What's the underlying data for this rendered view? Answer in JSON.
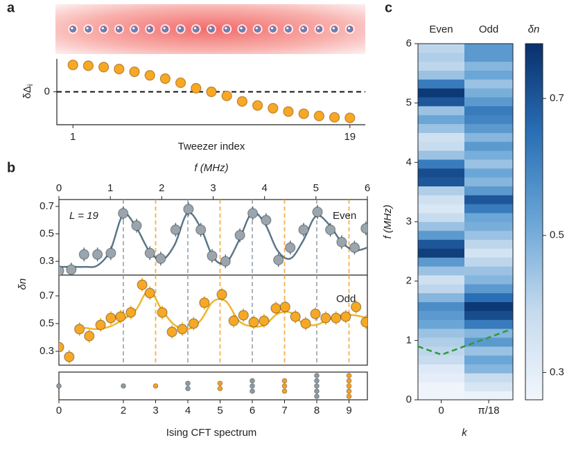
{
  "chart_data": [
    {
      "type": "scatter",
      "panel": "a",
      "xlabel": "Tweezer index",
      "ylabel": "δΔ",
      "ylabel_subscript": "i",
      "x": [
        1,
        2,
        3,
        4,
        5,
        6,
        7,
        8,
        9,
        10,
        11,
        12,
        13,
        14,
        15,
        16,
        17,
        18,
        19
      ],
      "values": [
        0.98,
        0.95,
        0.9,
        0.83,
        0.73,
        0.6,
        0.48,
        0.33,
        0.13,
        0,
        -0.15,
        -0.35,
        -0.5,
        -0.6,
        -0.72,
        -0.8,
        -0.88,
        -0.93,
        -0.95
      ],
      "color": "#f7a824",
      "xlim": [
        0,
        20
      ],
      "xticks": [
        1,
        19
      ],
      "ylim": [
        -1.2,
        1.2
      ],
      "yticks": [
        0
      ],
      "reference_line": 0
    },
    {
      "type": "line",
      "panel": "b",
      "xlabel": "f (MHz)",
      "ylabel": "δn",
      "annotation": "L = 19",
      "xlim": [
        0,
        6
      ],
      "xticks": [
        0,
        1,
        2,
        3,
        4,
        5,
        6
      ],
      "fit_x": [
        0,
        0.25,
        0.5,
        0.75,
        1,
        1.25,
        1.5,
        1.75,
        2,
        2.25,
        2.5,
        2.75,
        3,
        3.25,
        3.5,
        3.75,
        4,
        4.25,
        4.5,
        4.75,
        5,
        5.25,
        5.5,
        5.75,
        6
      ],
      "subplots": [
        {
          "name": "Even",
          "color": "#9aa5ad",
          "fit_color": "#5b7686",
          "ylim": [
            0.2,
            0.75
          ],
          "yticks": [
            0.3,
            0.5,
            0.7
          ],
          "x": [
            0,
            0.24,
            0.49,
            0.75,
            1.01,
            1.25,
            1.51,
            1.77,
            1.98,
            2.27,
            2.52,
            2.76,
            2.98,
            3.24,
            3.52,
            3.77,
            4.03,
            4.27,
            4.5,
            4.76,
            5.03,
            5.28,
            5.5,
            5.75,
            5.97
          ],
          "values": [
            0.23,
            0.24,
            0.35,
            0.35,
            0.36,
            0.65,
            0.56,
            0.36,
            0.32,
            0.53,
            0.68,
            0.53,
            0.34,
            0.3,
            0.49,
            0.65,
            0.6,
            0.31,
            0.4,
            0.53,
            0.66,
            0.53,
            0.44,
            0.4,
            0.54
          ],
          "fit_values": [
            0.26,
            0.26,
            0.26,
            0.27,
            0.38,
            0.64,
            0.55,
            0.38,
            0.31,
            0.42,
            0.65,
            0.55,
            0.33,
            0.29,
            0.45,
            0.65,
            0.58,
            0.38,
            0.32,
            0.45,
            0.63,
            0.57,
            0.44,
            0.38,
            0.4
          ]
        },
        {
          "name": "Odd",
          "color": "#f7a824",
          "fit_color": "#f0b52c",
          "ylim": [
            0.2,
            0.85
          ],
          "yticks": [
            0.3,
            0.5,
            0.7
          ],
          "x": [
            0,
            0.2,
            0.4,
            0.59,
            0.81,
            1.01,
            1.2,
            1.4,
            1.62,
            1.77,
            2.01,
            2.2,
            2.4,
            2.62,
            2.83,
            3.17,
            3.4,
            3.59,
            3.79,
            3.99,
            4.22,
            4.4,
            4.6,
            4.8,
            4.99,
            5.19,
            5.39,
            5.58,
            5.78,
            5.97
          ],
          "values": [
            0.33,
            0.26,
            0.46,
            0.41,
            0.49,
            0.54,
            0.55,
            0.58,
            0.78,
            0.72,
            0.58,
            0.44,
            0.46,
            0.5,
            0.65,
            0.71,
            0.52,
            0.56,
            0.51,
            0.52,
            0.61,
            0.62,
            0.55,
            0.5,
            0.57,
            0.54,
            0.54,
            0.55,
            0.62,
            0.51
          ],
          "fit_values": [
            null,
            null,
            0.47,
            0.46,
            0.48,
            0.53,
            0.6,
            0.74,
            0.6,
            0.49,
            0.46,
            0.52,
            0.66,
            0.66,
            0.52,
            0.48,
            0.49,
            0.57,
            0.58,
            0.5,
            0.49,
            0.53,
            0.56,
            0.56,
            0.54
          ]
        }
      ],
      "spectrum": {
        "xlabel": "Ising CFT spectrum",
        "xlim": [
          0,
          9.57
        ],
        "xticks": [
          0,
          2,
          3,
          4,
          5,
          6,
          7,
          8,
          9
        ],
        "levels": [
          0,
          2,
          3,
          4,
          5,
          6,
          7,
          8,
          9
        ],
        "degeneracy": [
          1,
          1,
          1,
          2,
          2,
          3,
          3,
          5,
          5
        ],
        "colors": [
          "#8e9aa3",
          "#8e9aa3",
          "#f4a024",
          "#8e9aa3",
          "#f4a024",
          "#8e9aa3",
          "#f4a024",
          "#8e9aa3",
          "#f4a024"
        ]
      }
    },
    {
      "type": "heatmap",
      "panel": "c",
      "ylabel": "f (MHz)",
      "xlabel": "k",
      "colorbar_label": "δn",
      "ylim": [
        0,
        6
      ],
      "yticks": [
        0,
        1,
        2,
        3,
        4,
        5,
        6
      ],
      "clim": [
        0.26,
        0.78
      ],
      "cticks": [
        0.3,
        0.5,
        0.7
      ],
      "series": [
        {
          "name": "Even",
          "k_label": "0",
          "values": [
            0.27,
            0.27,
            0.3,
            0.32,
            0.38,
            0.4,
            0.42,
            0.45,
            0.52,
            0.55,
            0.58,
            0.48,
            0.4,
            0.36,
            0.45,
            0.55,
            0.75,
            0.7,
            0.55,
            0.45,
            0.38,
            0.33,
            0.36,
            0.42,
            0.7,
            0.72,
            0.62,
            0.45,
            0.38,
            0.36,
            0.45,
            0.52,
            0.45,
            0.7,
            0.76,
            0.62,
            0.45,
            0.4,
            0.42,
            0.4
          ]
        },
        {
          "name": "Odd",
          "k_label": "π/18",
          "values": [
            0.28,
            0.34,
            0.38,
            0.48,
            0.52,
            0.45,
            0.55,
            0.48,
            0.62,
            0.72,
            0.76,
            0.65,
            0.55,
            0.48,
            0.45,
            0.4,
            0.35,
            0.4,
            0.45,
            0.5,
            0.52,
            0.62,
            0.7,
            0.55,
            0.48,
            0.52,
            0.45,
            0.5,
            0.55,
            0.48,
            0.55,
            0.6,
            0.62,
            0.55,
            0.5,
            0.45,
            0.52,
            0.48,
            0.55,
            0.55
          ]
        }
      ],
      "overlay": {
        "color": "#2e9a3a",
        "values": [
          0.9,
          0.76,
          1.19
        ]
      }
    }
  ]
}
